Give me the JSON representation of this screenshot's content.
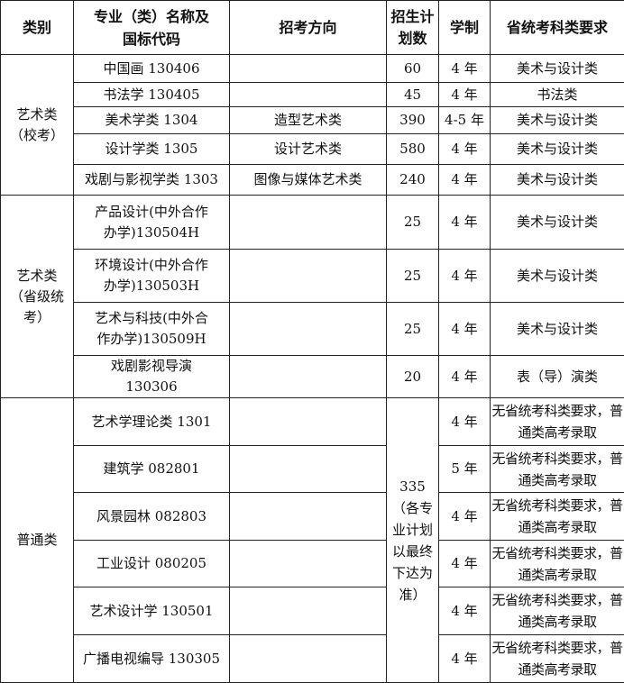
{
  "headers": [
    "类别",
    "专业（类）名称及国标代码",
    "招考方向",
    "招生计划数",
    "学制",
    "省统考科类要求"
  ],
  "groups": [
    {
      "category": "艺术类（校考）",
      "rows": [
        {
          "major": "中国画 130406",
          "direction": "",
          "plan": "60",
          "years": "4 年",
          "req": "美术与设计类"
        },
        {
          "major": "书法学 130405",
          "direction": "",
          "plan": "45",
          "years": "4 年",
          "req": "书法类"
        },
        {
          "major": "美术学类 1304",
          "direction": "造型艺术类",
          "plan": "390",
          "years": "4-5 年",
          "req": "美术与设计类"
        },
        {
          "major": "设计学类 1305",
          "direction": "设计艺术类",
          "plan": "580",
          "years": "4 年",
          "req": "美术与设计类"
        },
        {
          "major": "戏剧与影视学类 1303",
          "direction": "图像与媒体艺术类",
          "plan": "240",
          "years": "4 年",
          "req": "美术与设计类"
        }
      ]
    },
    {
      "category": "艺术类（省级统考）",
      "rows": [
        {
          "major": "产品设计(中外合作办学)130504H",
          "direction": "",
          "plan": "25",
          "years": "4 年",
          "req": "美术与设计类"
        },
        {
          "major": "环境设计(中外合作办学)130503H",
          "direction": "",
          "plan": "25",
          "years": "4 年",
          "req": "美术与设计类"
        },
        {
          "major": "艺术与科技(中外合作办学)130509H",
          "direction": "",
          "plan": "25",
          "years": "4 年",
          "req": "美术与设计类"
        },
        {
          "major": "戏剧影视导演 130306",
          "direction": "",
          "plan": "20",
          "years": "4 年",
          "req": "表（导）演类"
        }
      ]
    },
    {
      "category": "普通类",
      "shared_plan": "335（各专业计划以最终下达为准）",
      "rows": [
        {
          "major": "艺术学理论类 1301",
          "direction": "",
          "years": "4 年",
          "req": "无省统考科类要求，普通类高考录取"
        },
        {
          "major": "建筑学 082801",
          "direction": "",
          "years": "5 年",
          "req": "无省统考科类要求，普通类高考录取"
        },
        {
          "major": "风景园林 082803",
          "direction": "",
          "years": "4 年",
          "req": "无省统考科类要求，普通类高考录取"
        },
        {
          "major": "工业设计 080205",
          "direction": "",
          "years": "4 年",
          "req": "无省统考科类要求，普通类高考录取"
        },
        {
          "major": "艺术设计学 130501",
          "direction": "",
          "years": "4 年",
          "req": "无省统考科类要求，普通类高考录取"
        },
        {
          "major": "广播电视编导 130305",
          "direction": "",
          "years": "4 年",
          "req": "无省统考科类要求，普通类高考录取"
        }
      ]
    }
  ]
}
